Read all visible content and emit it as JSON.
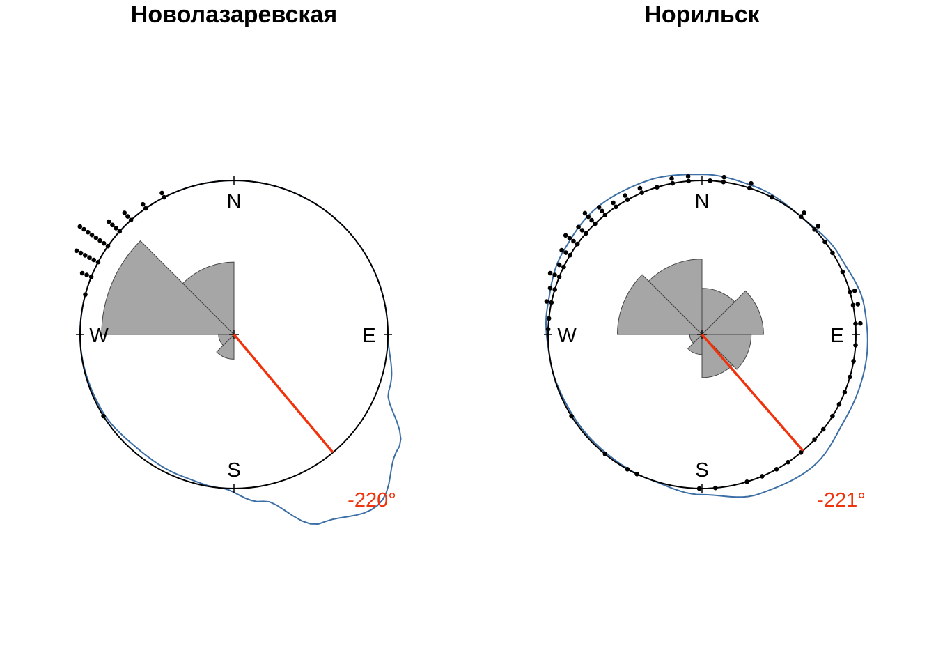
{
  "colors": {
    "background": "#ffffff",
    "circle": "#000000",
    "density": "#3b6ea5",
    "rose_fill": "#a6a6a6",
    "rose_stroke": "#444444",
    "mean_line": "#f0330d",
    "points": "#000000"
  },
  "chart_data": [
    {
      "type": "circular",
      "title": "Новолазаревская",
      "compass_labels": [
        "N",
        "E",
        "S",
        "W"
      ],
      "mean_direction_deg": -220,
      "mean_label": "-220°",
      "rose": {
        "bin_width_deg": 45,
        "bins": [
          {
            "start": 270,
            "end": 315,
            "value": 0.86
          },
          {
            "start": 315,
            "end": 360,
            "value": 0.47
          },
          {
            "start": 180,
            "end": 225,
            "value": 0.16
          },
          {
            "start": 225,
            "end": 270,
            "value": 0.1
          }
        ]
      },
      "points_stacked": [
        {
          "angle": 285,
          "count": 1
        },
        {
          "angle": 292,
          "count": 3
        },
        {
          "angle": 298,
          "count": 6
        },
        {
          "angle": 305,
          "count": 8
        },
        {
          "angle": 312,
          "count": 4
        },
        {
          "angle": 318,
          "count": 3
        },
        {
          "angle": 325,
          "count": 2
        },
        {
          "angle": 333,
          "count": 2
        },
        {
          "angle": 238,
          "count": 1
        }
      ],
      "density": [
        {
          "angle": 0,
          "r": 1.0
        },
        {
          "angle": 30,
          "r": 1.0
        },
        {
          "angle": 60,
          "r": 1.0
        },
        {
          "angle": 90,
          "r": 1.0
        },
        {
          "angle": 110,
          "r": 1.07
        },
        {
          "angle": 125,
          "r": 1.3
        },
        {
          "angle": 140,
          "r": 1.45
        },
        {
          "angle": 155,
          "r": 1.35
        },
        {
          "angle": 170,
          "r": 1.1
        },
        {
          "angle": 185,
          "r": 1.0
        },
        {
          "angle": 200,
          "r": 0.98
        },
        {
          "angle": 220,
          "r": 0.97
        },
        {
          "angle": 240,
          "r": 0.99
        },
        {
          "angle": 270,
          "r": 1.0
        },
        {
          "angle": 300,
          "r": 1.0
        },
        {
          "angle": 330,
          "r": 1.0
        },
        {
          "angle": 360,
          "r": 1.0
        }
      ]
    },
    {
      "type": "circular",
      "title": "Норильск",
      "compass_labels": [
        "N",
        "E",
        "S",
        "W"
      ],
      "mean_direction_deg": -221,
      "mean_label": "-221°",
      "rose": {
        "bin_width_deg": 45,
        "bins": [
          {
            "start": 315,
            "end": 360,
            "value": 0.49
          },
          {
            "start": 270,
            "end": 315,
            "value": 0.55
          },
          {
            "start": 0,
            "end": 45,
            "value": 0.3
          },
          {
            "start": 45,
            "end": 90,
            "value": 0.4
          },
          {
            "start": 90,
            "end": 135,
            "value": 0.32
          },
          {
            "start": 135,
            "end": 180,
            "value": 0.28
          },
          {
            "start": 180,
            "end": 225,
            "value": 0.13
          },
          {
            "start": 225,
            "end": 270,
            "value": 0.08
          }
        ]
      },
      "points_stacked": [
        {
          "angle": 276,
          "count": 1
        },
        {
          "angle": 282,
          "count": 2
        },
        {
          "angle": 287,
          "count": 2
        },
        {
          "angle": 292,
          "count": 3
        },
        {
          "angle": 296,
          "count": 2
        },
        {
          "angle": 301,
          "count": 3
        },
        {
          "angle": 306,
          "count": 4
        },
        {
          "angle": 311,
          "count": 3
        },
        {
          "angle": 316,
          "count": 4
        },
        {
          "angle": 321,
          "count": 3
        },
        {
          "angle": 326,
          "count": 2
        },
        {
          "angle": 331,
          "count": 2
        },
        {
          "angle": 337,
          "count": 2
        },
        {
          "angle": 343,
          "count": 1
        },
        {
          "angle": 349,
          "count": 2
        },
        {
          "angle": 355,
          "count": 2
        },
        {
          "angle": 3,
          "count": 1
        },
        {
          "angle": 8,
          "count": 2
        },
        {
          "angle": 18,
          "count": 2
        },
        {
          "angle": 27,
          "count": 1
        },
        {
          "angle": 40,
          "count": 2
        },
        {
          "angle": 47,
          "count": 2
        },
        {
          "angle": 53,
          "count": 1
        },
        {
          "angle": 58,
          "count": 1
        },
        {
          "angle": 66,
          "count": 1
        },
        {
          "angle": 74,
          "count": 2
        },
        {
          "angle": 79,
          "count": 2
        },
        {
          "angle": 86,
          "count": 2
        },
        {
          "angle": 94,
          "count": 1
        },
        {
          "angle": 100,
          "count": 1
        },
        {
          "angle": 106,
          "count": 1
        },
        {
          "angle": 112,
          "count": 1
        },
        {
          "angle": 117,
          "count": 1
        },
        {
          "angle": 122,
          "count": 1
        },
        {
          "angle": 128,
          "count": 1
        },
        {
          "angle": 133,
          "count": 1
        },
        {
          "angle": 140,
          "count": 1
        },
        {
          "angle": 146,
          "count": 1
        },
        {
          "angle": 151,
          "count": 1
        },
        {
          "angle": 157,
          "count": 1
        },
        {
          "angle": 163,
          "count": 1
        },
        {
          "angle": 175,
          "count": 1
        },
        {
          "angle": 181,
          "count": 1
        },
        {
          "angle": 205,
          "count": 1
        },
        {
          "angle": 209,
          "count": 1
        },
        {
          "angle": 219,
          "count": 1
        },
        {
          "angle": 238,
          "count": 1
        },
        {
          "angle": 272,
          "count": 1
        }
      ],
      "density": [
        {
          "angle": 0,
          "r": 1.04
        },
        {
          "angle": 20,
          "r": 1.02
        },
        {
          "angle": 40,
          "r": 1.0
        },
        {
          "angle": 60,
          "r": 1.03
        },
        {
          "angle": 80,
          "r": 1.07
        },
        {
          "angle": 100,
          "r": 1.08
        },
        {
          "angle": 120,
          "r": 1.08
        },
        {
          "angle": 140,
          "r": 1.12
        },
        {
          "angle": 160,
          "r": 1.1
        },
        {
          "angle": 180,
          "r": 1.04
        },
        {
          "angle": 200,
          "r": 1.0
        },
        {
          "angle": 220,
          "r": 0.99
        },
        {
          "angle": 240,
          "r": 0.99
        },
        {
          "angle": 260,
          "r": 1.0
        },
        {
          "angle": 280,
          "r": 1.02
        },
        {
          "angle": 300,
          "r": 1.05
        },
        {
          "angle": 320,
          "r": 1.07
        },
        {
          "angle": 340,
          "r": 1.06
        },
        {
          "angle": 360,
          "r": 1.04
        }
      ]
    }
  ]
}
